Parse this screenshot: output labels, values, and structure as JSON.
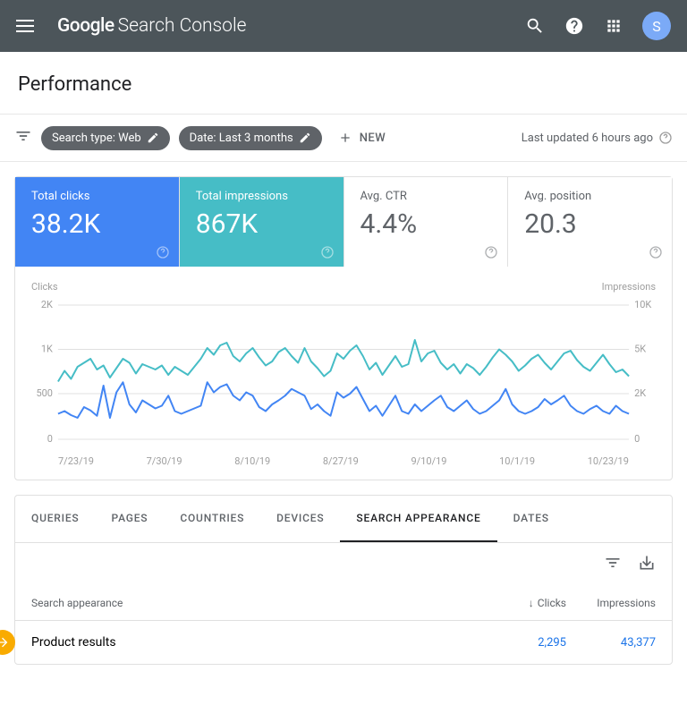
{
  "header": {
    "logo_google": "Google",
    "logo_sc": "Search Console",
    "avatar_letter": "S",
    "avatar_bg": "#7baaf7"
  },
  "page_title": "Performance",
  "filters": {
    "search_type": "Search type: Web",
    "date": "Date: Last 3 months",
    "new_label": "NEW",
    "last_updated": "Last updated 6 hours ago"
  },
  "metrics": [
    {
      "label": "Total clicks",
      "value": "38.2K",
      "bg": "#4285f4",
      "fg": "#ffffff"
    },
    {
      "label": "Total impressions",
      "value": "867K",
      "bg": "#46bdc6",
      "fg": "#ffffff"
    },
    {
      "label": "Avg. CTR",
      "value": "4.4%",
      "bg": "#ffffff",
      "fg": "#5f6368"
    },
    {
      "label": "Avg. position",
      "value": "20.3",
      "bg": "#ffffff",
      "fg": "#5f6368"
    }
  ],
  "chart": {
    "type": "line",
    "left_label": "Clicks",
    "right_label": "Impressions",
    "left_ticks": [
      "2K",
      "1K",
      "500",
      "0"
    ],
    "right_ticks": [
      "10K",
      "5K",
      "2K",
      "0"
    ],
    "x_labels": [
      "7/23/19",
      "7/30/19",
      "8/10/19",
      "8/27/19",
      "9/10/19",
      "10/1/19",
      "10/23/19"
    ],
    "grid_color": "#e0e0e0",
    "tick_color": "#9e9e9e",
    "label_fontsize": 11,
    "clicks_series": {
      "color": "#4285f4",
      "stroke_width": 2,
      "y_max": 2000,
      "values": [
        380,
        420,
        360,
        320,
        480,
        430,
        350,
        800,
        320,
        700,
        850,
        520,
        400,
        580,
        520,
        460,
        500,
        650,
        420,
        380,
        420,
        460,
        500,
        850,
        700,
        780,
        820,
        650,
        580,
        700,
        650,
        480,
        420,
        520,
        580,
        650,
        750,
        700,
        650,
        450,
        520,
        420,
        350,
        700,
        620,
        680,
        780,
        600,
        420,
        500,
        350,
        500,
        650,
        420,
        380,
        520,
        420,
        500,
        580,
        650,
        480,
        420,
        500,
        580,
        450,
        380,
        420,
        500,
        580,
        750,
        520,
        420,
        380,
        420,
        480,
        600,
        520,
        580,
        650,
        500,
        420,
        380,
        450,
        500,
        420,
        380,
        500,
        420,
        380
      ]
    },
    "impressions_series": {
      "color": "#46bdc6",
      "stroke_width": 2,
      "y_max": 10000,
      "values": [
        4300,
        5100,
        4500,
        5400,
        5700,
        6000,
        5200,
        5500,
        4600,
        5300,
        6000,
        5700,
        4900,
        5600,
        5400,
        5200,
        5500,
        4800,
        5400,
        5100,
        4800,
        5400,
        6000,
        6800,
        6300,
        7000,
        7200,
        6200,
        5800,
        6400,
        6800,
        6100,
        5500,
        5800,
        6500,
        6800,
        6200,
        5700,
        6800,
        5800,
        5300,
        4700,
        5100,
        6400,
        6000,
        6600,
        7000,
        6200,
        5200,
        5700,
        4800,
        5500,
        6200,
        5400,
        5600,
        7400,
        5800,
        6400,
        6600,
        5700,
        5200,
        5600,
        4900,
        5600,
        5300,
        4800,
        5400,
        6100,
        6700,
        6300,
        5800,
        5100,
        5500,
        6000,
        6300,
        5700,
        5200,
        5800,
        6400,
        6600,
        5900,
        5400,
        5100,
        5700,
        6300,
        5600,
        5000,
        5200,
        4700
      ]
    }
  },
  "tabs": {
    "items": [
      "QUERIES",
      "PAGES",
      "COUNTRIES",
      "DEVICES",
      "SEARCH APPEARANCE",
      "DATES"
    ],
    "active_index": 4
  },
  "table": {
    "col_name": "Search appearance",
    "col_clicks": "Clicks",
    "col_impr": "Impressions",
    "rows": [
      {
        "name": "Product results",
        "clicks": "2,295",
        "impressions": "43,377"
      }
    ]
  }
}
